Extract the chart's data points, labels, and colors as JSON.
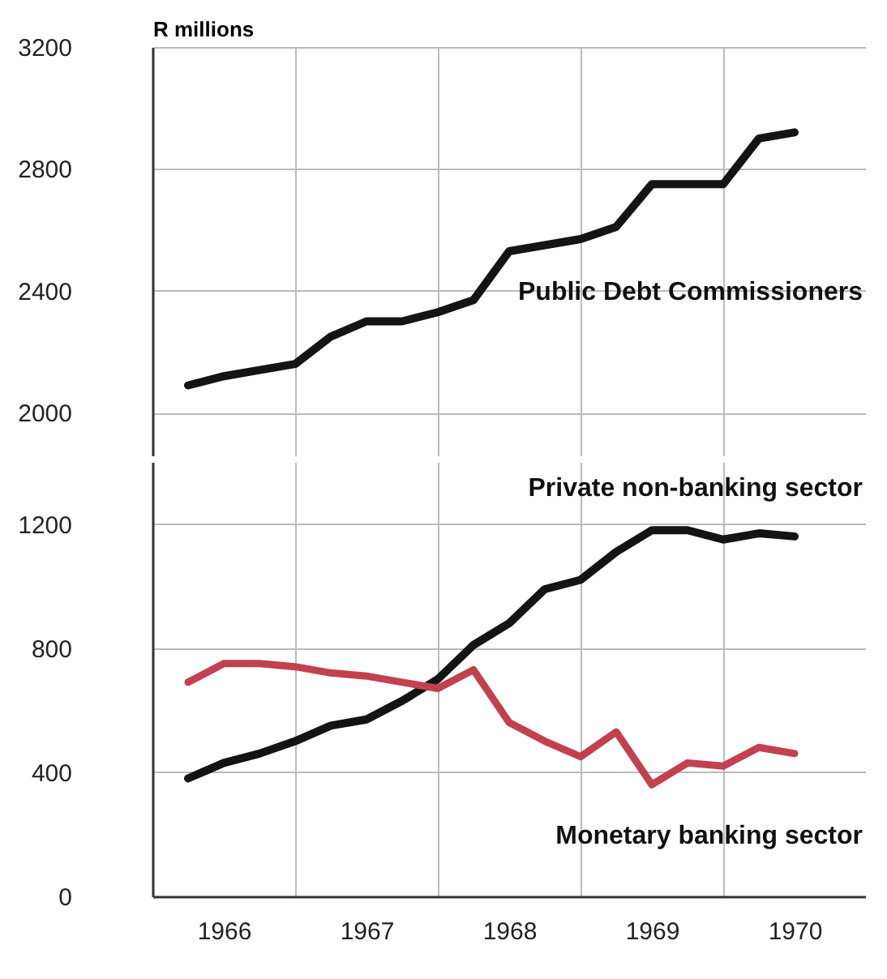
{
  "chart_data": [
    {
      "type": "line",
      "ylabel": "R millions",
      "x": [
        1966.25,
        1966.5,
        1966.75,
        1967,
        1967.25,
        1967.5,
        1967.75,
        1968,
        1968.25,
        1968.5,
        1968.75,
        1969,
        1969.25,
        1969.5,
        1969.75,
        1970,
        1970.25,
        1970.5
      ],
      "series": [
        {
          "name": "Public Debt Commissioners",
          "color": "#141414",
          "values": [
            2090,
            2120,
            2140,
            2160,
            2250,
            2300,
            2300,
            2330,
            2370,
            2530,
            2550,
            2570,
            2610,
            2750,
            2750,
            2750,
            2900,
            2920
          ]
        }
      ],
      "xlim": [
        1966,
        1971
      ],
      "xticks": [
        {
          "value": 1967,
          "label": null
        },
        {
          "value": 1968,
          "label": null
        },
        {
          "value": 1969,
          "label": null
        },
        {
          "value": 1970,
          "label": null
        }
      ],
      "ylim": [
        1860,
        3200
      ],
      "yticks": [
        2000,
        2400,
        2800,
        3200
      ],
      "grid": true,
      "tick_labels": "y"
    },
    {
      "type": "line",
      "x": [
        1966.25,
        1966.5,
        1966.75,
        1967,
        1967.25,
        1967.5,
        1967.75,
        1968,
        1968.25,
        1968.5,
        1968.75,
        1969,
        1969.25,
        1969.5,
        1969.75,
        1970,
        1970.25,
        1970.5
      ],
      "series": [
        {
          "name": "Private non-banking sector",
          "color": "#141414",
          "values": [
            380,
            430,
            460,
            500,
            550,
            570,
            630,
            700,
            810,
            880,
            990,
            1020,
            1110,
            1180,
            1180,
            1150,
            1170,
            1160
          ]
        },
        {
          "name": "Monetary banking sector",
          "color": "#c2414f",
          "values": [
            690,
            750,
            750,
            740,
            720,
            710,
            690,
            670,
            730,
            560,
            500,
            450,
            530,
            360,
            430,
            420,
            480,
            460
          ]
        }
      ],
      "xlim": [
        1966,
        1971
      ],
      "xticks": [
        {
          "value": 1966.5,
          "label": "1966"
        },
        {
          "value": 1967,
          "label": null
        },
        {
          "value": 1967.5,
          "label": "1967"
        },
        {
          "value": 1968,
          "label": null
        },
        {
          "value": 1968.5,
          "label": "1968"
        },
        {
          "value": 1969,
          "label": null
        },
        {
          "value": 1969.5,
          "label": "1969"
        },
        {
          "value": 1970,
          "label": null
        },
        {
          "value": 1970.5,
          "label": "1970"
        }
      ],
      "ylim": [
        0,
        1400
      ],
      "yticks": [
        0,
        400,
        800,
        1200
      ],
      "grid": true
    }
  ]
}
